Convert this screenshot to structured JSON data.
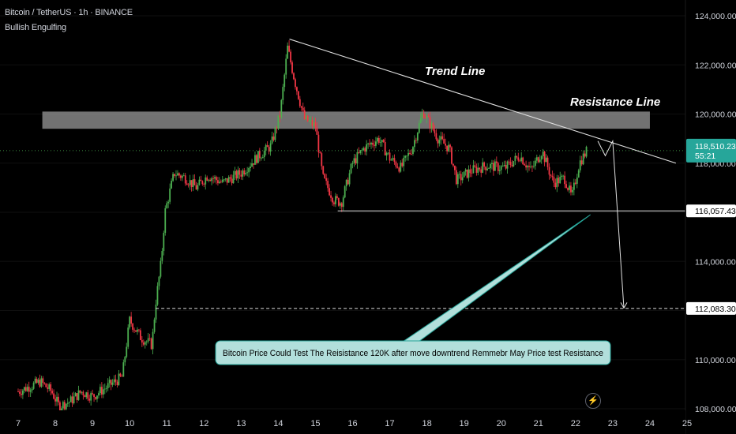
{
  "header": {
    "symbol_line": "Bitcoin / TetherUS · 1h · BINANCE",
    "indicator": "Bullish Engulfing"
  },
  "colors": {
    "background": "#000000",
    "bull": "#4caf50",
    "bear": "#f23645",
    "current_price_bg": "#26a69a",
    "resistance_zone": "#9e9e9e",
    "callout_bg": "#b2dfdb",
    "callout_border": "#26a69a",
    "text": "#d1d4dc"
  },
  "current_price": {
    "value": "118,510.23",
    "countdown": "55:21"
  },
  "annotations": {
    "trend_line": "Trend Line",
    "resistance_line": "Resistance Line",
    "callout": "Bitcoin Price Could Test The Reisistance 120K after move downtrend Remmebr May Price test Resistance"
  },
  "chart_data": {
    "type": "candlestick",
    "y_axis": {
      "ticks": [
        {
          "value": 108000,
          "label": "108,000.00"
        },
        {
          "value": 110000,
          "label": "110,000.00"
        },
        {
          "value": 112000,
          "label": "112,000.00"
        },
        {
          "value": 114000,
          "label": "114,000.00"
        },
        {
          "value": 116000,
          "label": "116,000.00"
        },
        {
          "value": 118000,
          "label": "118,000.00"
        },
        {
          "value": 120000,
          "label": "120,000.00"
        },
        {
          "value": 122000,
          "label": "122,000.00"
        },
        {
          "value": 124000,
          "label": "124,000.00"
        }
      ],
      "range": [
        108000,
        124000
      ]
    },
    "x_axis": {
      "ticks": [
        "7",
        "8",
        "9",
        "10",
        "11",
        "12",
        "13",
        "14",
        "15",
        "16",
        "17",
        "18",
        "19",
        "20",
        "21",
        "22",
        "23",
        "24",
        "25"
      ],
      "range": [
        7,
        25
      ]
    },
    "price_labels": [
      {
        "value": 118510.23,
        "label": "118,510.23",
        "style": "current"
      },
      {
        "value": 116057.43,
        "label": "116,057.43",
        "style": "white"
      },
      {
        "value": 112083.3,
        "label": "112,083.30",
        "style": "white"
      }
    ],
    "resistance_zone": [
      119400,
      120100
    ],
    "support_line": {
      "value": 116057.43,
      "from_day": 15.6,
      "to_day": 24.9
    },
    "target_line": {
      "value": 112083.3
    },
    "trend_line": {
      "from": [
        14.3,
        123050
      ],
      "to": [
        24.7,
        118000
      ]
    },
    "projection_path": [
      [
        22.6,
        118900
      ],
      [
        22.8,
        118300
      ],
      [
        23.0,
        118900
      ],
      [
        23.3,
        112100
      ]
    ],
    "callout_anchor": [
      22.4,
      115900
    ],
    "anchors": [
      [
        7.0,
        108700
      ],
      [
        7.3,
        108900
      ],
      [
        7.6,
        109100
      ],
      [
        7.9,
        108700
      ],
      [
        8.1,
        108100
      ],
      [
        8.4,
        108300
      ],
      [
        8.7,
        108700
      ],
      [
        9.0,
        108500
      ],
      [
        9.4,
        108900
      ],
      [
        9.8,
        109300
      ],
      [
        10.0,
        111600
      ],
      [
        10.3,
        110900
      ],
      [
        10.6,
        110600
      ],
      [
        10.7,
        112300
      ],
      [
        10.85,
        114000
      ],
      [
        10.95,
        116000
      ],
      [
        11.2,
        117600
      ],
      [
        11.5,
        117400
      ],
      [
        11.8,
        117000
      ],
      [
        12.1,
        117500
      ],
      [
        12.5,
        117200
      ],
      [
        13.0,
        117600
      ],
      [
        13.4,
        118200
      ],
      [
        13.8,
        118700
      ],
      [
        14.05,
        120000
      ],
      [
        14.25,
        122700
      ],
      [
        14.45,
        121300
      ],
      [
        14.7,
        119800
      ],
      [
        15.0,
        119500
      ],
      [
        15.2,
        117400
      ],
      [
        15.5,
        116500
      ],
      [
        15.7,
        116400
      ],
      [
        16.0,
        118000
      ],
      [
        16.3,
        118600
      ],
      [
        16.7,
        119000
      ],
      [
        17.0,
        118200
      ],
      [
        17.3,
        117800
      ],
      [
        17.6,
        118600
      ],
      [
        17.9,
        120100
      ],
      [
        18.3,
        119000
      ],
      [
        18.6,
        118600
      ],
      [
        18.8,
        117300
      ],
      [
        19.2,
        117700
      ],
      [
        19.6,
        117900
      ],
      [
        20.1,
        117800
      ],
      [
        20.5,
        118300
      ],
      [
        20.8,
        117700
      ],
      [
        21.1,
        118500
      ],
      [
        21.4,
        117200
      ],
      [
        21.7,
        117400
      ],
      [
        21.9,
        116600
      ],
      [
        22.1,
        118000
      ],
      [
        22.3,
        118500
      ]
    ]
  }
}
